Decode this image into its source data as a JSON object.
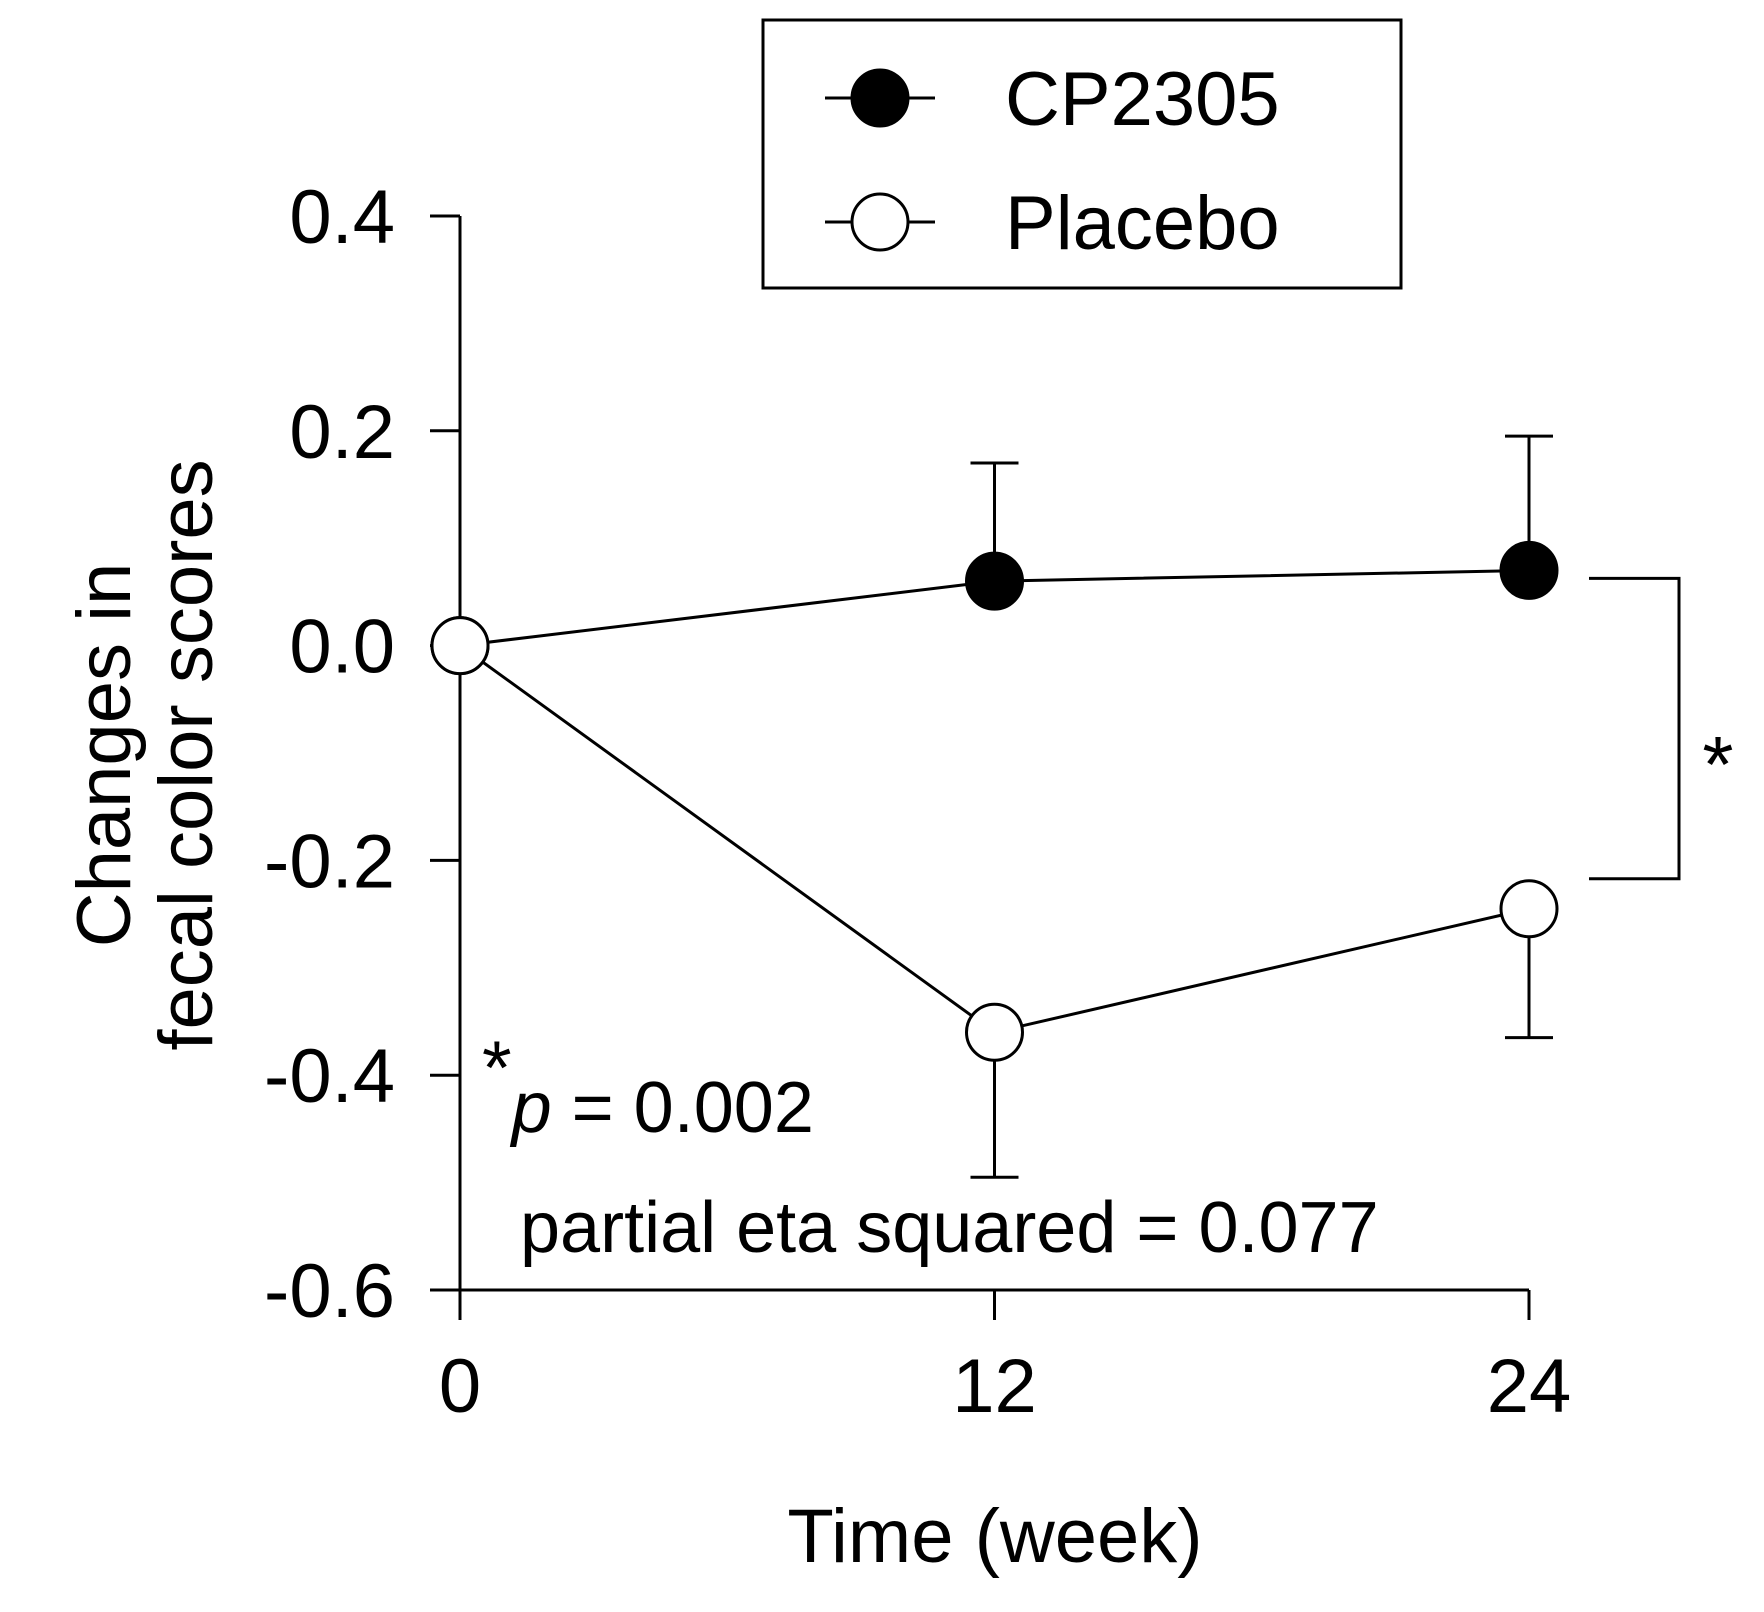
{
  "chart_data": {
    "type": "line",
    "xlabel": "Time (week)",
    "ylabel": [
      "Changes in",
      "fecal color scores"
    ],
    "x": [
      0,
      12,
      24
    ],
    "x_ticks": [
      "0",
      "12",
      "24"
    ],
    "ylim": [
      -0.6,
      0.4
    ],
    "y_ticks": [
      {
        "value": 0.4,
        "label": "0.4"
      },
      {
        "value": 0.2,
        "label": "0.2"
      },
      {
        "value": 0.0,
        "label": "0.0"
      },
      {
        "value": -0.2,
        "label": "-0.2"
      },
      {
        "value": -0.4,
        "label": "-0.4"
      },
      {
        "value": -0.6,
        "label": "-0.6"
      }
    ],
    "grid": false,
    "legend_position": "top-right",
    "series": [
      {
        "name": "CP2305",
        "marker": "filled-circle",
        "values": [
          0.0,
          0.06,
          0.07
        ],
        "error_upper": [
          0.0,
          0.17,
          0.195
        ],
        "error_lower": [
          null,
          null,
          null
        ]
      },
      {
        "name": "Placebo",
        "marker": "open-circle",
        "values": [
          0.0,
          -0.36,
          -0.245
        ],
        "error_upper": [
          null,
          null,
          null
        ],
        "error_lower": [
          0.0,
          -0.495,
          -0.365
        ]
      }
    ],
    "significance_marker": "*",
    "annotations": {
      "star": "*",
      "p_italic": "p",
      "p_rest": " = 0.002",
      "effect_size": "partial eta squared = 0.077"
    }
  }
}
